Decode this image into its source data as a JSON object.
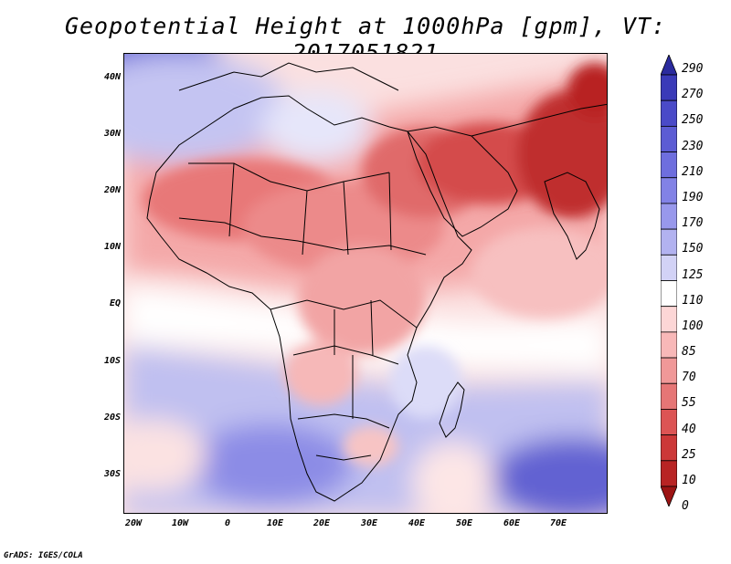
{
  "title": "Geopotential Height at 1000hPa [gpm], VT: 2017051821",
  "y_ticks": [
    "40N",
    "30N",
    "20N",
    "10N",
    "EQ",
    "10S",
    "20S",
    "30S"
  ],
  "x_ticks": [
    "20W",
    "10W",
    "0",
    "10E",
    "20E",
    "30E",
    "40E",
    "50E",
    "60E",
    "70E"
  ],
  "colorbar": {
    "labels": [
      "290",
      "270",
      "250",
      "230",
      "210",
      "190",
      "170",
      "150",
      "125",
      "110",
      "100",
      "85",
      "70",
      "55",
      "40",
      "25",
      "10",
      "0"
    ],
    "colors": [
      "#2b2b9e",
      "#3a3ab8",
      "#4a4ac8",
      "#5c5cd4",
      "#6e6ede",
      "#8282e6",
      "#9898ec",
      "#b2b2f0",
      "#d2d2f6",
      "#ffffff",
      "#fcd6d6",
      "#f8b8b8",
      "#f09898",
      "#e67676",
      "#dc5454",
      "#cc3838",
      "#b82424",
      "#9c1414"
    ]
  },
  "footer": "GrADS: IGES/COLA"
}
